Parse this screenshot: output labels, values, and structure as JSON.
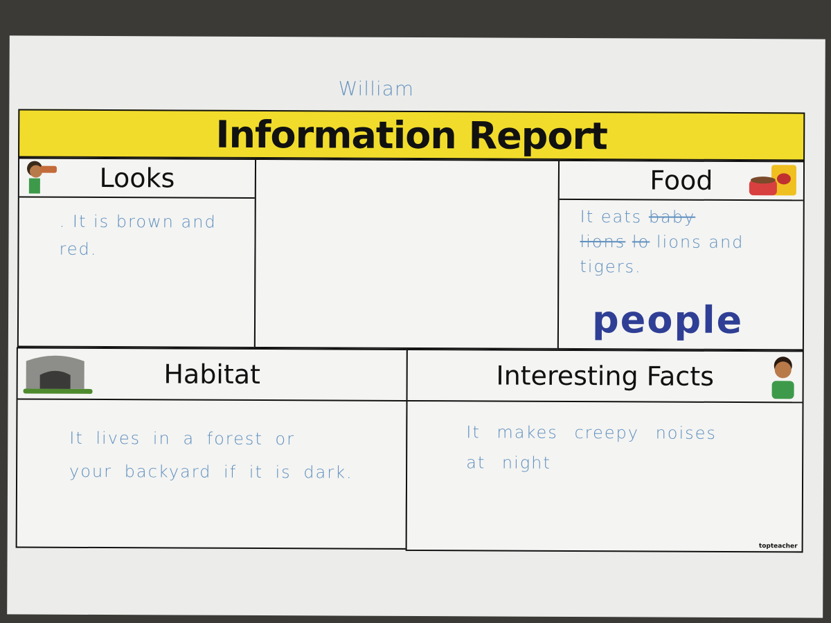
{
  "student_name": "William",
  "title": "Information Report",
  "sections": {
    "looks": {
      "heading": "Looks",
      "text": ". It is brown and red."
    },
    "food": {
      "heading": "Food",
      "struck_1": "baby",
      "struck_2": "lions",
      "struck_3": "lo",
      "line_1": "It eats",
      "line_2": "lions and",
      "line_3": "tigers.",
      "large_word": "people"
    },
    "habitat": {
      "heading": "Habitat",
      "line_1": "It lives in a forest or",
      "line_2": "your backyard if it is dark."
    },
    "facts": {
      "heading": "Interesting Facts",
      "line_1": "It makes creepy noises",
      "line_2": "at night"
    }
  },
  "brand": "topteacher",
  "colors": {
    "title_bar": "#f1dc2c",
    "pen": "#5e8fbf",
    "marker": "#2f3f95"
  }
}
